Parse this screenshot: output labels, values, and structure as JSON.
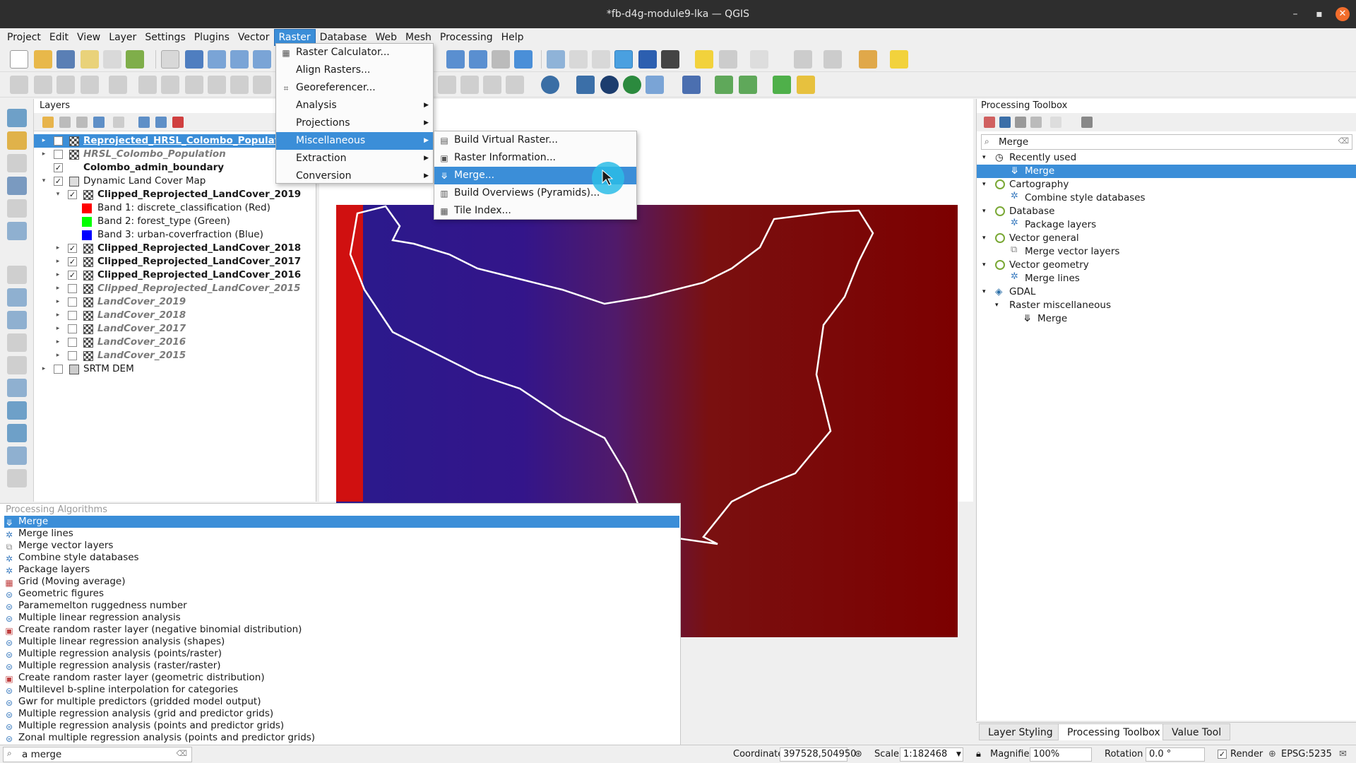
{
  "window": {
    "title": "*fb-d4g-module9-lka — QGIS",
    "min": "–",
    "max": "▪",
    "close": "✕"
  },
  "menubar": [
    "Project",
    "Edit",
    "View",
    "Layer",
    "Settings",
    "Plugins",
    "Vector",
    "Raster",
    "Database",
    "Web",
    "Mesh",
    "Processing",
    "Help"
  ],
  "raster_menu": {
    "items": [
      "Raster Calculator...",
      "Align Rasters...",
      "Georeferencer...",
      "Analysis",
      "Projections",
      "Miscellaneous",
      "Extraction",
      "Conversion"
    ],
    "highlighted": "Miscellaneous"
  },
  "misc_menu": {
    "items": [
      "Build Virtual Raster...",
      "Raster Information...",
      "Merge...",
      "Build Overviews (Pyramids)...",
      "Tile Index..."
    ],
    "highlighted": "Merge..."
  },
  "layers": {
    "title": "Layers",
    "rows": [
      {
        "name": "Reprojected_HRSL_Colombo_Populati",
        "checked": true
      },
      {
        "name": "HRSL_Colombo_Population",
        "checked": false
      },
      {
        "name": "Colombo_admin_boundary",
        "checked": true
      },
      {
        "name": "Dynamic Land Cover Map",
        "checked": true
      },
      {
        "name": "Clipped_Reprojected_LandCover_2019",
        "checked": true
      },
      {
        "name": "Band 1: discrete_classification (Red)",
        "color": "#ff0000"
      },
      {
        "name": "Band 2: forest_type (Green)",
        "color": "#00ff00"
      },
      {
        "name": "Band 3: urban-coverfraction (Blue)",
        "color": "#0000ff"
      },
      {
        "name": "Clipped_Reprojected_LandCover_2018",
        "checked": true
      },
      {
        "name": "Clipped_Reprojected_LandCover_2017",
        "checked": true
      },
      {
        "name": "Clipped_Reprojected_LandCover_2016",
        "checked": true
      },
      {
        "name": "Clipped_Reprojected_LandCover_2015",
        "checked": false
      },
      {
        "name": "LandCover_2019",
        "checked": false
      },
      {
        "name": "LandCover_2018",
        "checked": false
      },
      {
        "name": "LandCover_2017",
        "checked": false
      },
      {
        "name": "LandCover_2016",
        "checked": false
      },
      {
        "name": "LandCover_2015",
        "checked": false
      },
      {
        "name": "SRTM DEM",
        "checked": false
      }
    ]
  },
  "toolbox": {
    "title": "Processing Toolbox",
    "search": "Merge",
    "rows": [
      {
        "label": "Recently used",
        "kind": "group"
      },
      {
        "label": "Merge",
        "kind": "algo"
      },
      {
        "label": "Cartography",
        "kind": "group"
      },
      {
        "label": "Combine style databases",
        "kind": "algo"
      },
      {
        "label": "Database",
        "kind": "group"
      },
      {
        "label": "Package layers",
        "kind": "algo"
      },
      {
        "label": "Vector general",
        "kind": "group"
      },
      {
        "label": "Merge vector layers",
        "kind": "algo"
      },
      {
        "label": "Vector geometry",
        "kind": "group"
      },
      {
        "label": "Merge lines",
        "kind": "algo"
      },
      {
        "label": "GDAL",
        "kind": "group"
      },
      {
        "label": "Raster miscellaneous",
        "kind": "sub"
      },
      {
        "label": "Merge",
        "kind": "algo"
      }
    ],
    "tabs": [
      "Layer Styling",
      "Processing Toolbox",
      "Value Tool"
    ],
    "active_tab": "Processing Toolbox"
  },
  "algorithms": {
    "title": "Processing Algorithms",
    "items": [
      "Merge",
      "Merge lines",
      "Merge vector layers",
      "Combine style databases",
      "Package layers",
      "Grid (Moving average)",
      "Geometric figures",
      "Paramemelton ruggedness number",
      "Multiple linear regression analysis",
      "Create random raster layer (negative binomial distribution)",
      "Multiple linear regression analysis (shapes)",
      "Multiple regression analysis (points/raster)",
      "Multiple regression analysis (raster/raster)",
      "Create random raster layer (geometric distribution)",
      "Multilevel b-spline interpolation for categories",
      "Gwr for multiple predictors (gridded model output)",
      "Multiple regression analysis (grid and predictor grids)",
      "Multiple regression analysis (points and predictor grids)",
      "Zonal multiple regression analysis (points and predictor grids)"
    ]
  },
  "statusbar": {
    "locator": "a merge",
    "coordinate_label": "Coordinate",
    "coordinate": "397528,504950",
    "scale_label": "Scale",
    "scale": "1:182468",
    "magnifier_label": "Magnifier",
    "magnifier": "100%",
    "rotation_label": "Rotation",
    "rotation": "0.0 °",
    "render": "Render",
    "crs": "EPSG:5235"
  },
  "colors": {
    "accent": "#3b8ed8",
    "titlebar": "#2e2e2e",
    "close": "#f26d2c"
  }
}
